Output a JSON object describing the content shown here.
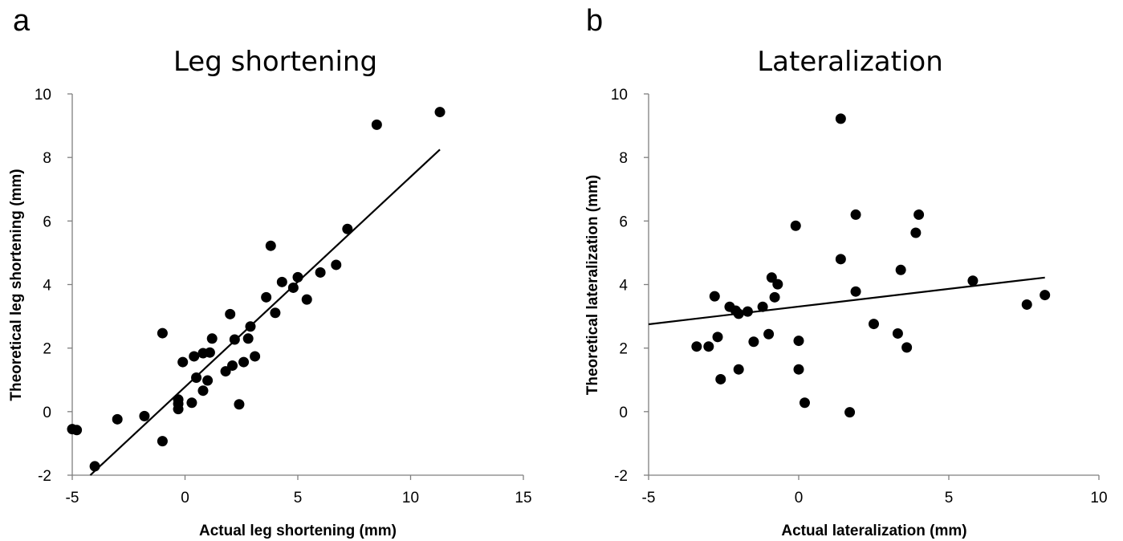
{
  "panels": [
    {
      "letter": "a",
      "chart_data": {
        "type": "scatter",
        "title": "Leg shortening",
        "xlabel": "Actual leg shortening (mm)",
        "ylabel": "Theoretical leg shortening (mm)",
        "xlim": [
          -5,
          15
        ],
        "ylim": [
          -2,
          10
        ],
        "xticks": [
          -5,
          0,
          5,
          10,
          15
        ],
        "yticks": [
          -2,
          0,
          2,
          4,
          6,
          8,
          10
        ],
        "grid": false,
        "legend": "none",
        "marker_color": "#000000",
        "points": [
          [
            -5.0,
            -0.55
          ],
          [
            -4.8,
            -0.58
          ],
          [
            -4.0,
            -1.72
          ],
          [
            -3.0,
            -0.24
          ],
          [
            -1.8,
            -0.14
          ],
          [
            -1.0,
            2.47
          ],
          [
            -1.0,
            -0.93
          ],
          [
            -0.3,
            0.38
          ],
          [
            -0.3,
            0.25
          ],
          [
            -0.3,
            0.08
          ],
          [
            -0.1,
            1.56
          ],
          [
            0.3,
            0.28
          ],
          [
            0.4,
            1.74
          ],
          [
            0.5,
            1.07
          ],
          [
            0.8,
            1.84
          ],
          [
            0.8,
            0.66
          ],
          [
            1.0,
            0.98
          ],
          [
            1.1,
            1.86
          ],
          [
            1.2,
            2.3
          ],
          [
            1.8,
            1.27
          ],
          [
            2.0,
            3.07
          ],
          [
            2.1,
            1.45
          ],
          [
            2.2,
            2.27
          ],
          [
            2.4,
            0.23
          ],
          [
            2.6,
            1.56
          ],
          [
            2.8,
            2.3
          ],
          [
            2.9,
            2.68
          ],
          [
            3.1,
            1.74
          ],
          [
            3.6,
            3.6
          ],
          [
            3.8,
            5.22
          ],
          [
            4.0,
            3.11
          ],
          [
            4.3,
            4.08
          ],
          [
            4.8,
            3.9
          ],
          [
            5.0,
            4.23
          ],
          [
            5.4,
            3.53
          ],
          [
            6.0,
            4.38
          ],
          [
            6.7,
            4.62
          ],
          [
            7.2,
            5.75
          ],
          [
            8.5,
            9.03
          ],
          [
            11.3,
            9.43
          ]
        ],
        "trendline": {
          "x": [
            -4.2,
            11.3
          ],
          "y": [
            -2.0,
            8.25
          ]
        }
      }
    },
    {
      "letter": "b",
      "chart_data": {
        "type": "scatter",
        "title": "Lateralization",
        "xlabel": "Actual lateralization (mm)",
        "ylabel": "Theoretical lateralization (mm)",
        "xlim": [
          -5,
          10
        ],
        "ylim": [
          -2,
          10
        ],
        "xticks": [
          -5,
          0,
          5,
          10
        ],
        "yticks": [
          -2,
          0,
          2,
          4,
          6,
          8,
          10
        ],
        "grid": false,
        "legend": "none",
        "marker_color": "#000000",
        "points": [
          [
            -3.4,
            2.05
          ],
          [
            -3.0,
            2.05
          ],
          [
            -2.8,
            3.63
          ],
          [
            -2.7,
            2.35
          ],
          [
            -2.6,
            1.02
          ],
          [
            -2.3,
            3.3
          ],
          [
            -2.1,
            3.18
          ],
          [
            -2.0,
            3.08
          ],
          [
            -2.0,
            1.33
          ],
          [
            -1.7,
            3.15
          ],
          [
            -1.5,
            2.2
          ],
          [
            -1.2,
            3.3
          ],
          [
            -1.0,
            2.44
          ],
          [
            -0.9,
            4.22
          ],
          [
            -0.8,
            3.6
          ],
          [
            -0.7,
            4.01
          ],
          [
            -0.1,
            5.85
          ],
          [
            0.0,
            2.23
          ],
          [
            0.0,
            1.33
          ],
          [
            0.2,
            0.28
          ],
          [
            1.4,
            9.22
          ],
          [
            1.4,
            4.8
          ],
          [
            1.7,
            -0.02
          ],
          [
            1.9,
            6.2
          ],
          [
            1.9,
            3.78
          ],
          [
            2.5,
            2.76
          ],
          [
            3.3,
            2.46
          ],
          [
            3.4,
            4.46
          ],
          [
            3.6,
            2.02
          ],
          [
            3.9,
            5.63
          ],
          [
            4.0,
            6.2
          ],
          [
            5.8,
            4.12
          ],
          [
            7.6,
            3.37
          ],
          [
            8.2,
            3.67
          ]
        ],
        "trendline": {
          "x": [
            -5.0,
            8.2
          ],
          "y": [
            2.75,
            4.22
          ]
        }
      }
    }
  ]
}
